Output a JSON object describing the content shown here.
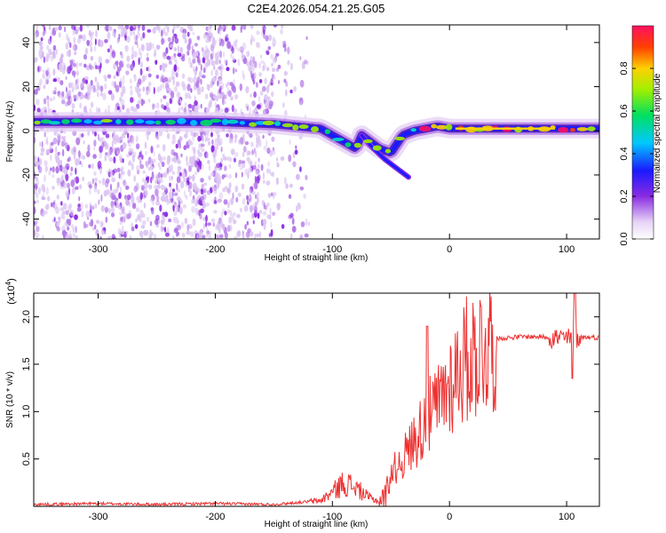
{
  "title": "C2E4.2026.054.21.25.G05",
  "chart_data": [
    {
      "type": "heatmap",
      "xlabel": "Height of straight line (km)",
      "ylabel": "Frequency (Hz)",
      "xlim": [
        -355,
        128
      ],
      "ylim": [
        -49,
        48
      ],
      "xticks": [
        -300,
        -200,
        -100,
        0,
        100
      ],
      "yticks": [
        -40,
        -20,
        0,
        20,
        40
      ],
      "colorbar": {
        "label": "Normalized spectral amplitude",
        "range": [
          0,
          1
        ],
        "ticks": [
          0.0,
          0.2,
          0.4,
          0.6,
          0.8
        ],
        "tick_labels": [
          "0.0",
          "0.2",
          "0.4",
          "0.6",
          "0.8"
        ]
      },
      "ridge": {
        "description_values": "dominant frequency (Hz) vs height (km)",
        "x": [
          -355,
          -300,
          -250,
          -200,
          -150,
          -130,
          -110,
          -100,
          -90,
          -80,
          -75,
          -70,
          -60,
          -50,
          -45,
          -40,
          -30,
          -20,
          -10,
          0,
          50,
          100,
          128
        ],
        "y": [
          4,
          4,
          4,
          4,
          3,
          2,
          1,
          -2,
          -5,
          -8,
          -2,
          -4,
          -8,
          -10,
          -6,
          -2,
          0,
          1,
          2,
          1,
          1,
          1,
          1
        ]
      },
      "secondary_branch": {
        "x": [
          -75,
          -65,
          -55,
          -45,
          -35
        ],
        "y": [
          -2,
          -8,
          -13,
          -17,
          -21
        ]
      }
    },
    {
      "type": "line",
      "xlabel": "Height of straight line (km)",
      "ylabel": "SNR (10 * v/v)",
      "y_multiplier": "(x10",
      "y_multiplier_exp": "4",
      "y_multiplier_close": ")",
      "xlim": [
        -355,
        128
      ],
      "ylim": [
        0,
        2.25
      ],
      "xticks": [
        -300,
        -200,
        -100,
        0,
        100
      ],
      "yticks": [
        0.5,
        1.0,
        1.5,
        2.0
      ],
      "ytick_labels": [
        "0.5",
        "1.0",
        "1.5",
        "2.0"
      ],
      "series": [
        {
          "name": "SNR",
          "color": "#ee3030",
          "x": [
            -355,
            -300,
            -250,
            -200,
            -150,
            -130,
            -110,
            -100,
            -90,
            -80,
            -70,
            -60,
            -55,
            -50,
            -40,
            -30,
            -20,
            -10,
            0,
            10,
            20,
            30,
            40,
            60,
            80,
            90,
            100,
            105,
            110,
            128
          ],
          "y": [
            0.02,
            0.03,
            0.02,
            0.03,
            0.02,
            0.04,
            0.06,
            0.15,
            0.25,
            0.2,
            0.1,
            0.05,
            0.1,
            0.35,
            0.5,
            0.7,
            0.9,
            1.05,
            1.3,
            1.5,
            1.6,
            1.7,
            1.77,
            1.79,
            1.79,
            1.78,
            1.77,
            1.76,
            1.79,
            1.78
          ]
        }
      ]
    }
  ]
}
